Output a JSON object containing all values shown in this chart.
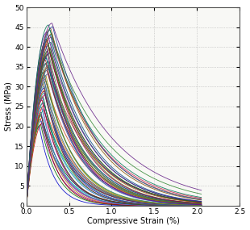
{
  "xlabel": "Compressive Strain (%)",
  "ylabel": "Stress (MPa)",
  "xlim": [
    0,
    2.5
  ],
  "ylim": [
    0,
    50
  ],
  "xticks": [
    0,
    0.5,
    1.0,
    1.5,
    2.0,
    2.5
  ],
  "yticks": [
    0,
    5,
    10,
    15,
    20,
    25,
    30,
    35,
    40,
    45,
    50
  ],
  "grid_color": "#aaaaaa",
  "bg_color": "#f8f8f5",
  "linewidth": 0.6,
  "num_curves": 60,
  "fc_min": 20,
  "fc_max": 46,
  "eps_c0_base": 0.002,
  "descend_rate": 0.5,
  "xlabel_fontsize": 7,
  "ylabel_fontsize": 7,
  "tick_fontsize": 6.5,
  "all_colors": [
    "#0000cc",
    "#007700",
    "#cc0000",
    "#00aaaa",
    "#880088",
    "#cc6600",
    "#004400",
    "#880000",
    "#3355cc",
    "#228822",
    "#cc44aa",
    "#0099cc",
    "#cc3300",
    "#770099",
    "#00cc77",
    "#aa0022",
    "#1166cc",
    "#226622",
    "#cc0066",
    "#009988",
    "#660066",
    "#cc7700",
    "#0000aa",
    "#44aaaa",
    "#882222",
    "#336688",
    "#77aa22",
    "#cc4422",
    "#336699",
    "#aa8800",
    "#5544aa",
    "#227755",
    "#993322",
    "#4477bb",
    "#334d00",
    "#aa5544",
    "#223366",
    "#117744",
    "#aa3333",
    "#2244aa",
    "#006666",
    "#887700",
    "#0d0d66",
    "#447744",
    "#774444",
    "#446622",
    "#660099",
    "#aa5500",
    "#005555",
    "#990044",
    "#116611",
    "#cc2255",
    "#004488",
    "#885500",
    "#551199",
    "#338833",
    "#995533",
    "#224499",
    "#007755",
    "#662288"
  ]
}
